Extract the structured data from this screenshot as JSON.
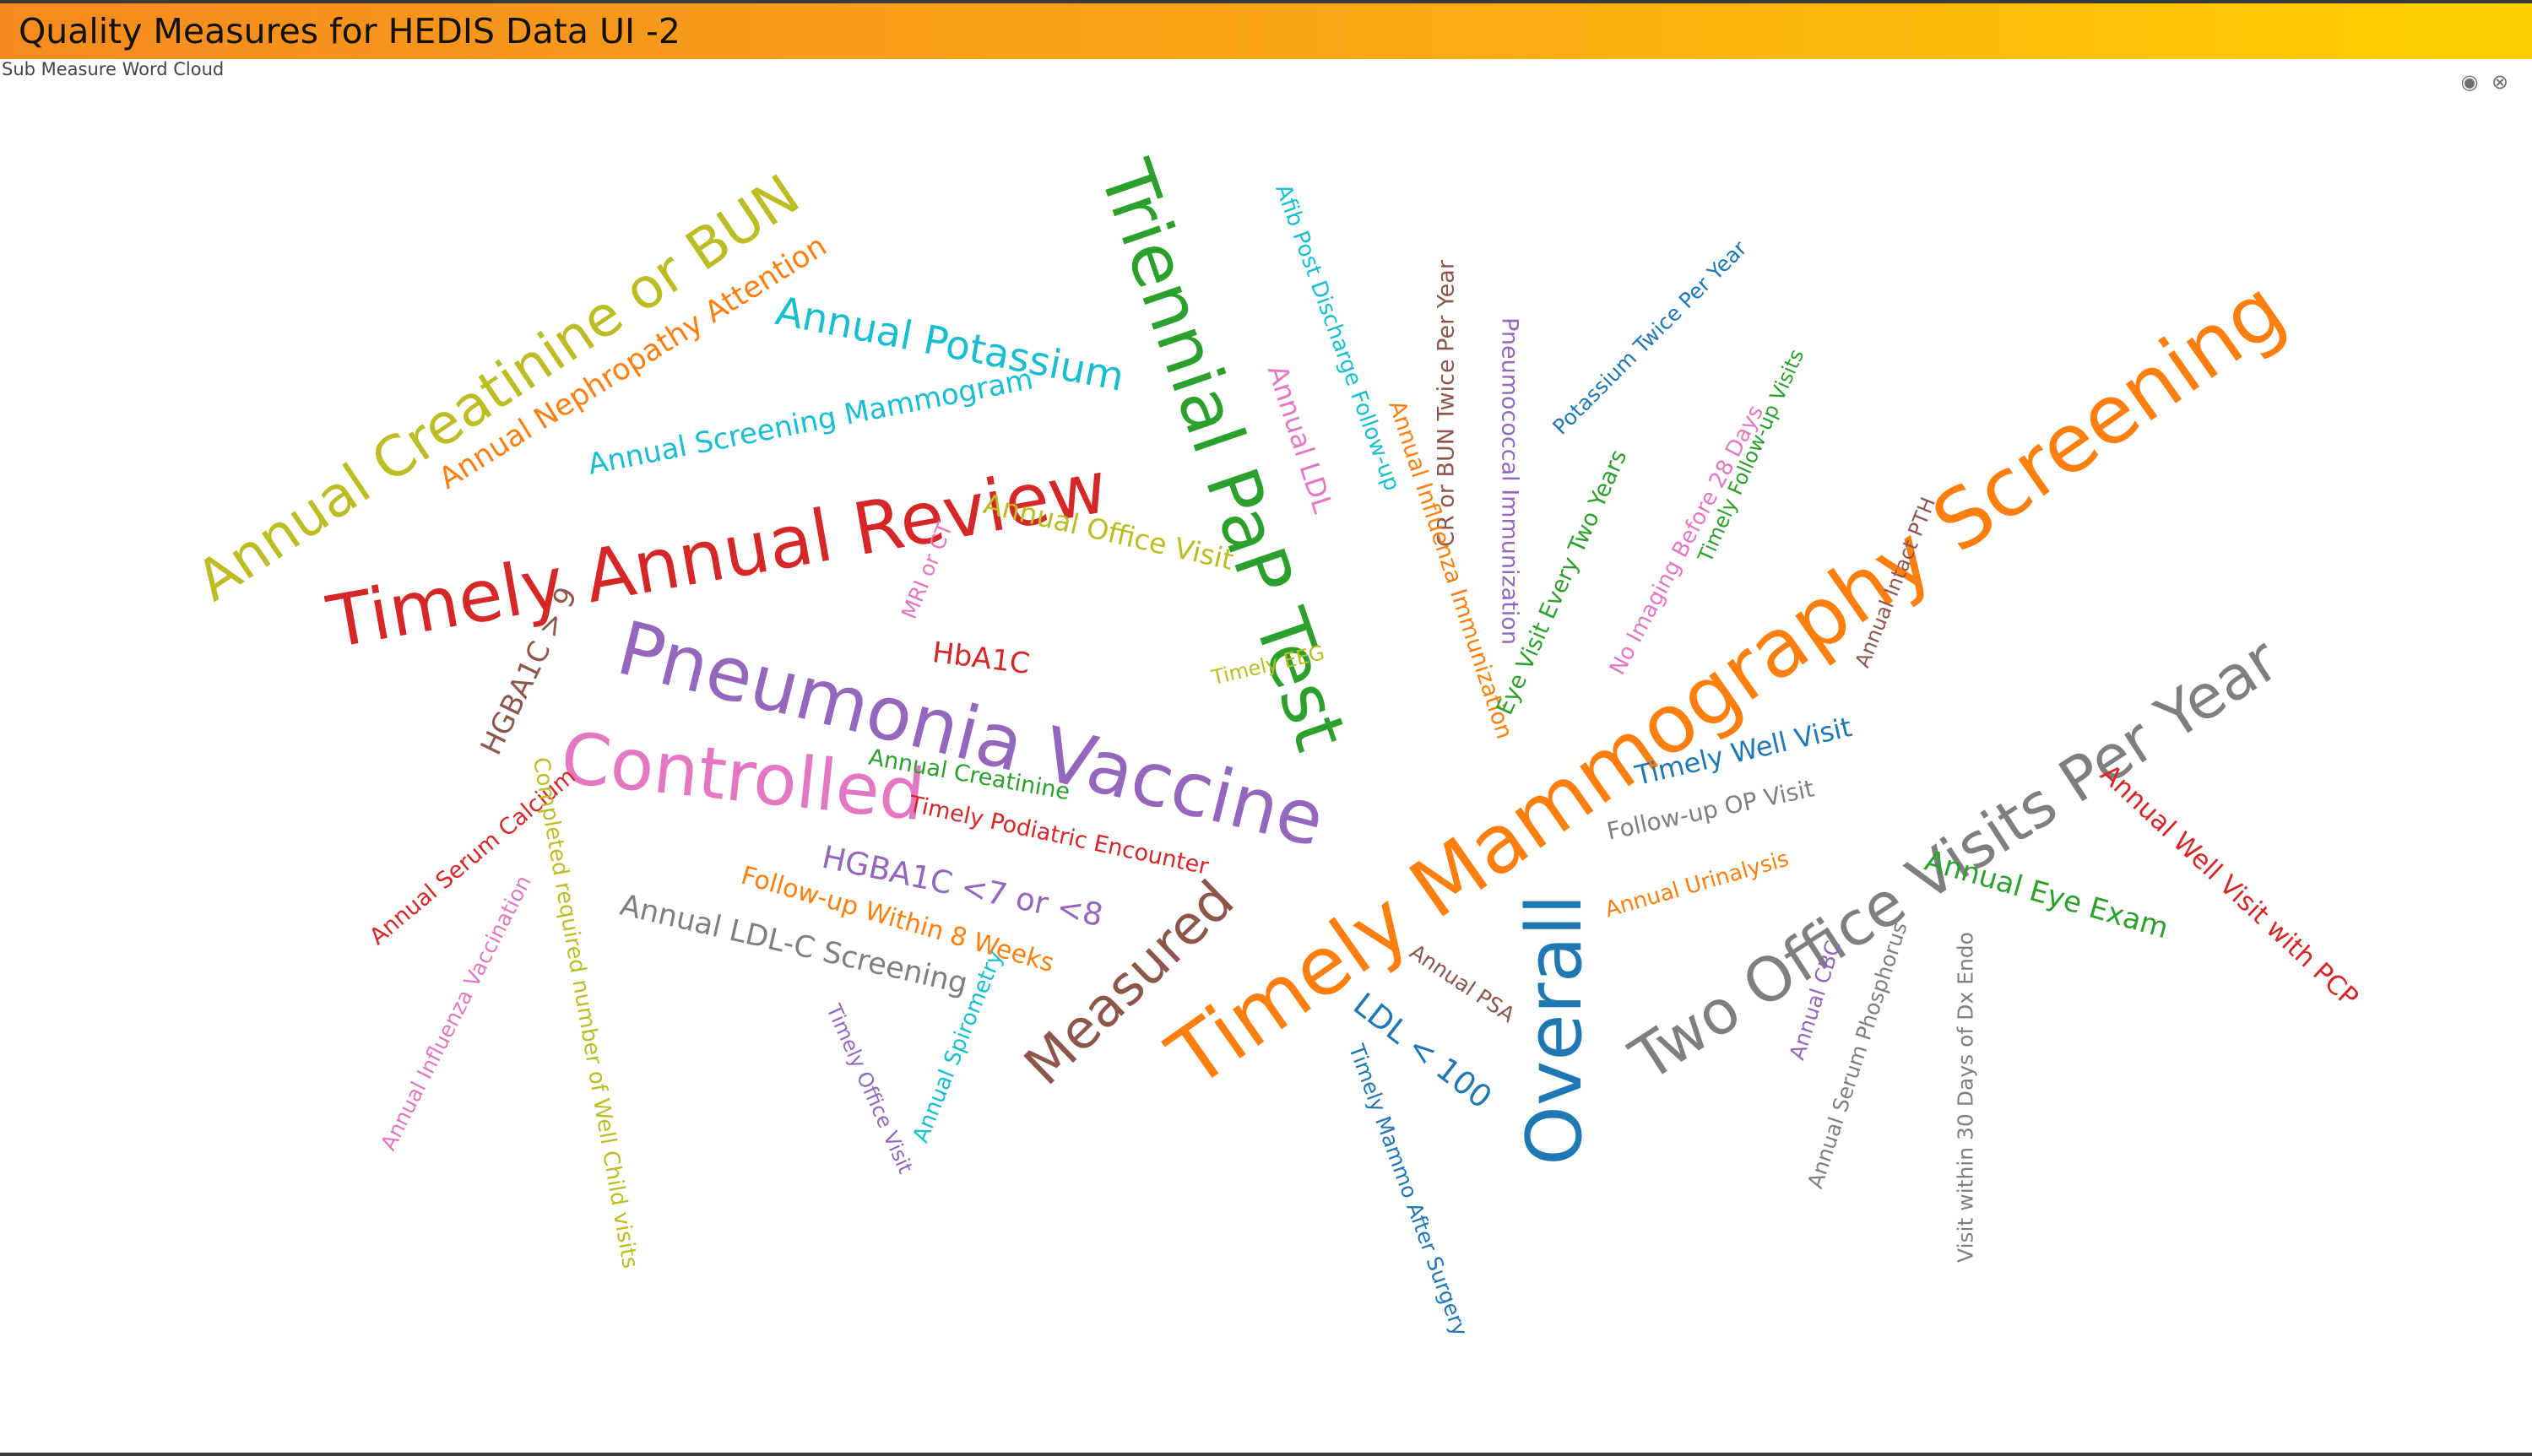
{
  "window": {
    "title": "Quality Measures for HEDIS Data UI -2",
    "subtitle": "Sub Measure Word Cloud",
    "icons": {
      "camera": "camera-icon",
      "close": "close-icon"
    }
  },
  "colors": {
    "accent_start": "#f58b1f",
    "accent_end": "#ffd000"
  },
  "word_cloud": {
    "words": [
      {
        "text": "Annual Creatinine or BUN",
        "color": "#bcbd22"
      },
      {
        "text": "Annual Nephropathy Attention",
        "color": "#ff7f0e"
      },
      {
        "text": "Annual Potassium",
        "color": "#17becf"
      },
      {
        "text": "Annual Screening Mammogram",
        "color": "#17becf"
      },
      {
        "text": "Timely Annual Review",
        "color": "#d62728"
      },
      {
        "text": "Triennial PaP Test",
        "color": "#2ca02c"
      },
      {
        "text": "Afib Post Discharge Follow-up",
        "color": "#17becf"
      },
      {
        "text": "CR or BUN Twice Per Year",
        "color": "#8c564b"
      },
      {
        "text": "Pneumococcal Immunization",
        "color": "#9467bd"
      },
      {
        "text": "Potassium Twice Per Year",
        "color": "#1f77b4"
      },
      {
        "text": "Annual LDL",
        "color": "#e377c2"
      },
      {
        "text": "Annual Influenza Immunization",
        "color": "#ff7f0e"
      },
      {
        "text": "Timely Mammography Screening",
        "color": "#ff7f0e"
      },
      {
        "text": "Timely Follow-up Visits",
        "color": "#2ca02c"
      },
      {
        "text": "No Imaging Before 28 Days",
        "color": "#e377c2"
      },
      {
        "text": "Eye Visit Every Two Years",
        "color": "#2ca02c"
      },
      {
        "text": "Annual Office Visit",
        "color": "#bcbd22"
      },
      {
        "text": "MRI or CT",
        "color": "#e377c2"
      },
      {
        "text": "HbA1C",
        "color": "#d62728"
      },
      {
        "text": "HGBA1C > 9",
        "color": "#8c564b"
      },
      {
        "text": "Pneumonia Vaccine",
        "color": "#9467bd"
      },
      {
        "text": "Timely EEG",
        "color": "#bcbd22"
      },
      {
        "text": "Annual Intact PTH",
        "color": "#8c564b"
      },
      {
        "text": "Two Office Visits Per Year",
        "color": "#7f7f7f"
      },
      {
        "text": "Controlled",
        "color": "#e377c2"
      },
      {
        "text": "Annual Creatinine",
        "color": "#2ca02c"
      },
      {
        "text": "Timely Podiatric Encounter",
        "color": "#d62728"
      },
      {
        "text": "Timely Well Visit",
        "color": "#1f77b4"
      },
      {
        "text": "Follow-up OP Visit",
        "color": "#7f7f7f"
      },
      {
        "text": "Annual Serum Calcium",
        "color": "#d62728"
      },
      {
        "text": "Completed required number of Well Child visits",
        "color": "#bcbd22"
      },
      {
        "text": "Annual Influenza Vaccination",
        "color": "#e377c2"
      },
      {
        "text": "HGBA1C <7 or <8",
        "color": "#9467bd"
      },
      {
        "text": "Follow-up Within 8 Weeks",
        "color": "#ff7f0e"
      },
      {
        "text": "Annual LDL-C Screening",
        "color": "#7f7f7f"
      },
      {
        "text": "Measured",
        "color": "#8c564b"
      },
      {
        "text": "Overall",
        "color": "#1f77b4"
      },
      {
        "text": "Annual Urinalysis",
        "color": "#ff7f0e"
      },
      {
        "text": "Annual Well Visit with PCP",
        "color": "#d62728"
      },
      {
        "text": "Annual Eye Exam",
        "color": "#2ca02c"
      },
      {
        "text": "Annual PSA",
        "color": "#8c564b"
      },
      {
        "text": "LDL < 100",
        "color": "#1f77b4"
      },
      {
        "text": "Timely Mammo After Surgery",
        "color": "#1f77b4"
      },
      {
        "text": "Timely Office Visit",
        "color": "#9467bd"
      },
      {
        "text": "Annual Spirometry",
        "color": "#17becf"
      },
      {
        "text": "Annual CBC",
        "color": "#9467bd"
      },
      {
        "text": "Annual Serum Phosphorus",
        "color": "#7f7f7f"
      },
      {
        "text": "Visit within 30 Days of Dx Endo",
        "color": "#7f7f7f"
      }
    ]
  }
}
